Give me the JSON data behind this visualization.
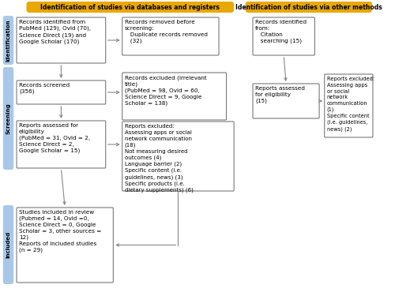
{
  "title_left": "Identification of studies via databases and registers",
  "title_right": "Identification of studies via other methods",
  "title_bg": "#E8A800",
  "stage_bg": "#A8C8E8",
  "box_bg": "#FFFFFF",
  "box_border": "#666666",
  "arrow_color": "#888888",
  "stage_labels": [
    "Identification",
    "Screening",
    "Included"
  ],
  "box_texts": {
    "id_left": "Records identified from\nPubMed (129), Ovid (70),\nScience Direct (19) and\nGoogle Scholar (170)",
    "id_removed": "Records removed before\nscreening:\n   Duplicate records removed\n   (32)",
    "id_right": "Records identified\nfrom:\n   Citation\n   searching (15)",
    "screen_left": "Records screened\n(356)",
    "screen_excl": "Records excluded (irrelevant\ntitle)\n(PubMed = 98, Ovid = 60,\nScience Direct = 9, Google\nScholar = 138)",
    "elig_left": "Reports assessed for\neligibility\n(PubMed = 31, Ovid = 2,\nScience Direct = 2,\nGoogle Scholar = 15)",
    "elig_excl": "Reports excluded:\nAssessing apps or social\nnetwork communication\n(18)\nNot measuring desired\noutcomes (4)\nLanguage barrier (2)\nSpecific content (i.e.\nguidelines, news) (3)\nSpecific products (i.e.\ndietary supplements) (6)",
    "elig_right": "Reports assessed\nfor eligibility\n(15)",
    "excl_right": "Reports excluded:\nAssessing apps\nor social\nnetwork\ncommunication\n(1)\nSpecific content\n(i.e. guidelines,\nnews) (2)",
    "included": "Studies included in review\n(Pubmed = 14, Ovid =0,\nScience Direct = 0, Google\nScholar = 3, other sources =\n12)\nReports of included studies\n(n = 29)"
  }
}
